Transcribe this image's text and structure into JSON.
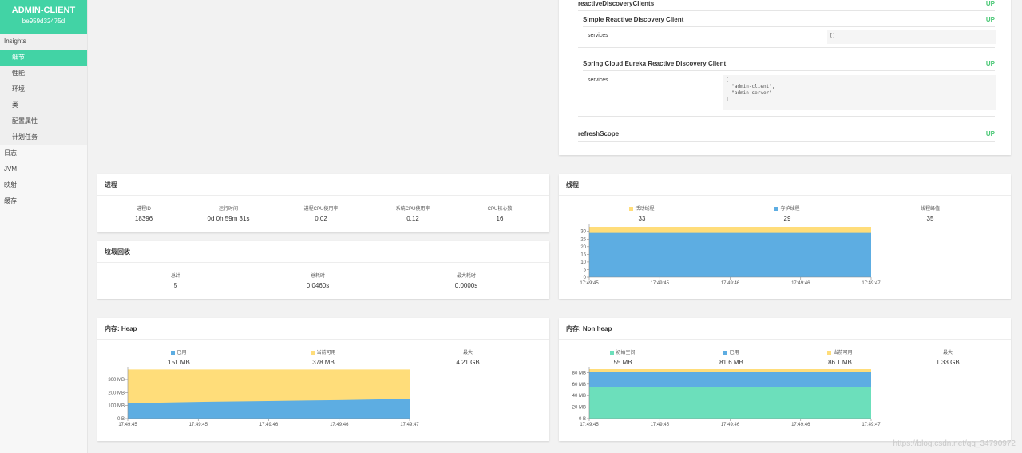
{
  "app": {
    "name": "ADMIN-CLIENT",
    "instance_id": "be959d32475d"
  },
  "sidebar": {
    "group_title": "Insights",
    "sub_items": [
      {
        "label": "细节",
        "active": true
      },
      {
        "label": "性能"
      },
      {
        "label": "环境"
      },
      {
        "label": "类"
      },
      {
        "label": "配置属性"
      },
      {
        "label": "计划任务"
      }
    ],
    "top_items": [
      "日志",
      "JVM",
      "映射",
      "缓存"
    ]
  },
  "health": {
    "reactive_discovery": "reactiveDiscoveryClients",
    "reactive_status": "UP",
    "simple_client": "Simple Reactive Discovery Client",
    "simple_status": "UP",
    "services_label": "services",
    "simple_services_value": "[]",
    "eureka_client": "Spring Cloud Eureka Reactive Discovery Client",
    "eureka_status": "UP",
    "eureka_services_label": "services",
    "eureka_services_value": "[\n  \"admin-client\",\n  \"admin-server\"\n]",
    "refresh_scope": "refreshScope",
    "refresh_status": "UP"
  },
  "process": {
    "title": "进程",
    "labels": [
      "进程ID",
      "运行时间",
      "进程CPU使用率",
      "系统CPU使用率",
      "CPU核心数"
    ],
    "values": [
      "18396",
      "0d 0h 59m 31s",
      "0.02",
      "0.12",
      "16"
    ]
  },
  "gc": {
    "title": "垃圾回收",
    "labels": [
      "总计",
      "总耗时",
      "最大耗时"
    ],
    "values": [
      "5",
      "0.0460s",
      "0.0000s"
    ]
  },
  "threads": {
    "title": "线程",
    "labels": [
      "活动线程",
      "守护线程",
      "线程峰值"
    ],
    "values": [
      "33",
      "29",
      "35"
    ]
  },
  "heap": {
    "title": "内存: Heap",
    "labels": [
      "已用",
      "当前可用",
      "最大"
    ],
    "values": [
      "151 MB",
      "378 MB",
      "4.21 GB"
    ]
  },
  "nonheap": {
    "title": "内存: Non heap",
    "labels": [
      "初始空间",
      "已用",
      "当前可用",
      "最大"
    ],
    "values": [
      "55 MB",
      "81.6 MB",
      "86.1 MB",
      "1.33 GB"
    ]
  },
  "colors": {
    "accent": "#42d3a5",
    "used": "#5dade2",
    "available": "#ffdd7a",
    "init": "#6cdfbb",
    "up": "#48c774"
  },
  "chart_data": [
    {
      "type": "area",
      "title": "线程",
      "x": [
        "17:49:45",
        "17:49:45",
        "17:49:46",
        "17:49:46",
        "17:49:47"
      ],
      "series": [
        {
          "name": "守护线程",
          "values": [
            29,
            29,
            29,
            29,
            29
          ]
        },
        {
          "name": "活动线程",
          "values": [
            33,
            33,
            33,
            33,
            33
          ]
        }
      ],
      "yticks": [
        "0",
        "5",
        "10",
        "15",
        "20",
        "25",
        "30"
      ],
      "ylim": [
        0,
        33
      ]
    },
    {
      "type": "area",
      "title": "内存: Heap",
      "x": [
        "17:49:45",
        "17:49:45",
        "17:49:46",
        "17:49:46",
        "17:49:47"
      ],
      "series": [
        {
          "name": "已用",
          "values": [
            118,
            128,
            135,
            142,
            151
          ]
        },
        {
          "name": "当前可用",
          "values": [
            378,
            378,
            378,
            378,
            378
          ]
        }
      ],
      "yticks": [
        "0 B",
        "100 MB",
        "200 MB",
        "300 MB"
      ],
      "ylim": [
        0,
        380
      ]
    },
    {
      "type": "area",
      "title": "内存: Non heap",
      "x": [
        "17:49:45",
        "17:49:45",
        "17:49:46",
        "17:49:46",
        "17:49:47"
      ],
      "series": [
        {
          "name": "初始空间",
          "values": [
            55,
            55,
            55,
            55,
            55
          ]
        },
        {
          "name": "已用",
          "values": [
            81.6,
            81.6,
            81.6,
            81.6,
            81.6
          ]
        },
        {
          "name": "当前可用",
          "values": [
            86.1,
            86.1,
            86.1,
            86.1,
            86.1
          ]
        }
      ],
      "yticks": [
        "0 B",
        "20 MB",
        "40 MB",
        "60 MB",
        "80 MB"
      ],
      "ylim": [
        0,
        86.1
      ]
    }
  ],
  "watermark": "https://blog.csdn.net/qq_34790972"
}
